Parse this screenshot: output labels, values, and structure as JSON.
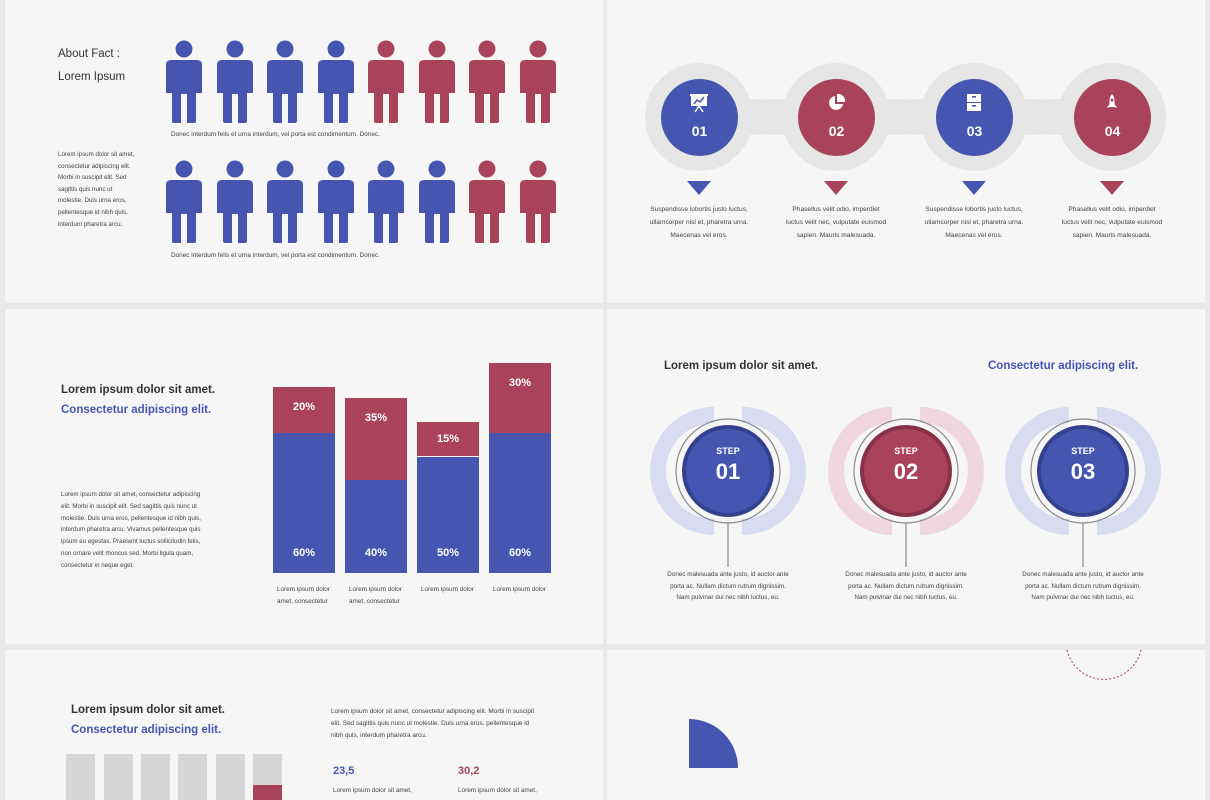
{
  "colors": {
    "blue": "#4656b0",
    "red": "#a8435a",
    "gray_bar": "#d6d6d6"
  },
  "s1": {
    "title_line1": "About Fact :",
    "title_line2": "Lorem Ipsum",
    "side_text": "Lorem ipsum dolor sit amet, consectetur adipiscing elit. Morbi in suscipit elit. Sed sagittis quis nunc ut molestie. Duis urna eros, pellentesque id nibh quis, interdum pharetra arcu.",
    "row1_caption": "Donec interdum felis et urna interdum, vel porta est condimentum. Donec.",
    "row2_caption": "Donec interdum felis et urna interdum, vel porta est condimentum. Donec.",
    "row1": [
      "blue",
      "blue",
      "blue",
      "blue",
      "red",
      "red",
      "red",
      "red"
    ],
    "row2": [
      "blue",
      "blue",
      "blue",
      "blue",
      "blue",
      "blue",
      "red",
      "red"
    ]
  },
  "s2": {
    "items": [
      {
        "num": "01",
        "icon": "presentation-icon",
        "color": "blue",
        "text": "Suspendisse lobortis justo luctus, ullamcorper nisl et, pharetra urna. Maecenas vel eros."
      },
      {
        "num": "02",
        "icon": "pie-chart-icon",
        "color": "red",
        "text": "Phasellus velit odio, imperdiet luctus velit nec, vulputate euismod sapien. Mauris malesuada."
      },
      {
        "num": "03",
        "icon": "cabinet-icon",
        "color": "blue",
        "text": "Suspendisse lobortis justo luctus, ullamcorper nisl et, pharetra urna. Maecenas vel eros."
      },
      {
        "num": "04",
        "icon": "rocket-icon",
        "color": "red",
        "text": "Phasellus velit odio, imperdiet luctus velit nec, vulputate euismod sapien. Mauris malesuada."
      }
    ]
  },
  "s3": {
    "heading": "Lorem ipsum dolor sit amet.",
    "subheading": "Consectetur adipiscing elit.",
    "body": "Lorem ipsum dolor sit amet, consectetur adipiscing elit. Morbi in suscipit elit. Sed sagittis quis nunc ut molestie. Duis urna eros, pellentesque id nibh quis, interdum pharetra arcu. Vivamus pellentesque quis ipsum eu egestas. Praesent luctus sollicitudin felis, non ornare velit rhoncus sed. Morbi ligula quam, consectetur in neque eget."
  },
  "chart_data": {
    "type": "bar",
    "stacked": true,
    "categories": [
      "Lorem ipsum dolor amet, consectetur",
      "Lorem ipsum dolor amet, consectetur",
      "Lorem ipsum dolor",
      "Lorem ipsum dolor"
    ],
    "series": [
      {
        "color": "#4656b0",
        "values": [
          60,
          40,
          50,
          60
        ],
        "labels": [
          "60%",
          "40%",
          "50%",
          "60%"
        ]
      },
      {
        "color": "#a8435a",
        "values": [
          20,
          35,
          15,
          30
        ],
        "labels": [
          "20%",
          "35%",
          "15%",
          "30%"
        ]
      }
    ]
  },
  "s4": {
    "heading": "Lorem ipsum dolor sit amet.",
    "subheading": "Consectetur adipiscing elit.",
    "step_word": "STEP",
    "steps": [
      {
        "num": "01",
        "color": "blue",
        "text": "Donec malesuada ante justo, id auctor ante porta ac. Nullam dictum rutrum dignissim. Nam pulvinar dui nec nibh luctus, eu."
      },
      {
        "num": "02",
        "color": "red",
        "text": "Donec malesuada ante justo, id auctor ante porta ac. Nullam dictum rutrum dignissim. Nam pulvinar dui nec nibh luctus, eu."
      },
      {
        "num": "03",
        "color": "blue",
        "text": "Donec malesuada ante justo, id auctor ante porta ac. Nullam dictum rutrum dignissim. Nam pulvinar dui nec nibh luctus, eu."
      }
    ]
  },
  "s5": {
    "heading": "Lorem ipsum dolor sit amet.",
    "subheading": "Consectetur adipiscing elit.",
    "body": "Lorem ipsum dolor sit amet, consectetur adipiscing elit. Morbi in suscipit elit. Sed sagittis quis nunc ut molestie. Duis urna eros, pellentesque id nibh quis, interdum pharetra arcu.",
    "stat1_value": "23,5",
    "stat1_text": "Lorem ipsum dolor sit amet,",
    "stat2_value": "30,2",
    "stat2_text": "Lorem ipsum dolor sit amet,"
  }
}
